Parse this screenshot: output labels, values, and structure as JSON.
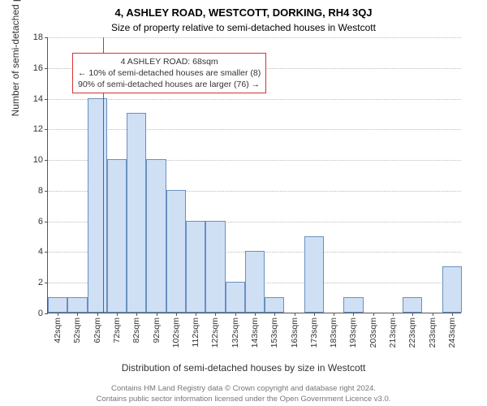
{
  "titles": {
    "main": "4, ASHLEY ROAD, WESTCOTT, DORKING, RH4 3QJ",
    "sub": "Size of property relative to semi-detached houses in Westcott"
  },
  "axes": {
    "y_label": "Number of semi-detached properties",
    "x_label": "Distribution of semi-detached houses by size in Westcott",
    "ylim": [
      0,
      18
    ],
    "ytick_step": 2,
    "yticks": [
      0,
      2,
      4,
      6,
      8,
      10,
      12,
      14,
      16,
      18
    ]
  },
  "chart": {
    "type": "histogram",
    "bar_fill": "#cfe0f5",
    "bar_stroke": "#6a8fbf",
    "bar_stroke_width": 1,
    "grid_color": "#bbbbbb",
    "axis_color": "#555555",
    "background": "#ffffff",
    "x_unit": "sqm",
    "x_min": 40,
    "x_max": 250,
    "bin_width": 10,
    "x_tick_labels": [
      "42sqm",
      "52sqm",
      "62sqm",
      "72sqm",
      "82sqm",
      "92sqm",
      "102sqm",
      "112sqm",
      "122sqm",
      "132sqm",
      "143sqm",
      "153sqm",
      "163sqm",
      "173sqm",
      "183sqm",
      "193sqm",
      "203sqm",
      "213sqm",
      "223sqm",
      "233sqm",
      "243sqm"
    ],
    "bins": [
      {
        "start": 40,
        "count": 1
      },
      {
        "start": 50,
        "count": 1
      },
      {
        "start": 60,
        "count": 14
      },
      {
        "start": 70,
        "count": 10
      },
      {
        "start": 80,
        "count": 13
      },
      {
        "start": 90,
        "count": 10
      },
      {
        "start": 100,
        "count": 8
      },
      {
        "start": 110,
        "count": 6
      },
      {
        "start": 120,
        "count": 6
      },
      {
        "start": 130,
        "count": 2
      },
      {
        "start": 140,
        "count": 4
      },
      {
        "start": 150,
        "count": 1
      },
      {
        "start": 160,
        "count": 0
      },
      {
        "start": 170,
        "count": 5
      },
      {
        "start": 180,
        "count": 0
      },
      {
        "start": 190,
        "count": 1
      },
      {
        "start": 200,
        "count": 0
      },
      {
        "start": 210,
        "count": 0
      },
      {
        "start": 220,
        "count": 1
      },
      {
        "start": 230,
        "count": 0
      },
      {
        "start": 240,
        "count": 3
      }
    ]
  },
  "marker": {
    "value": 68,
    "color": "#d33333",
    "callout_border": "#d33333",
    "lines": {
      "l1": "4 ASHLEY ROAD: 68sqm",
      "l2": "← 10% of semi-detached houses are smaller (8)",
      "l3": "90% of semi-detached houses are larger (76) →"
    }
  },
  "footer": {
    "l1": "Contains HM Land Registry data © Crown copyright and database right 2024.",
    "l2": "Contains public sector information licensed under the Open Government Licence v3.0."
  }
}
